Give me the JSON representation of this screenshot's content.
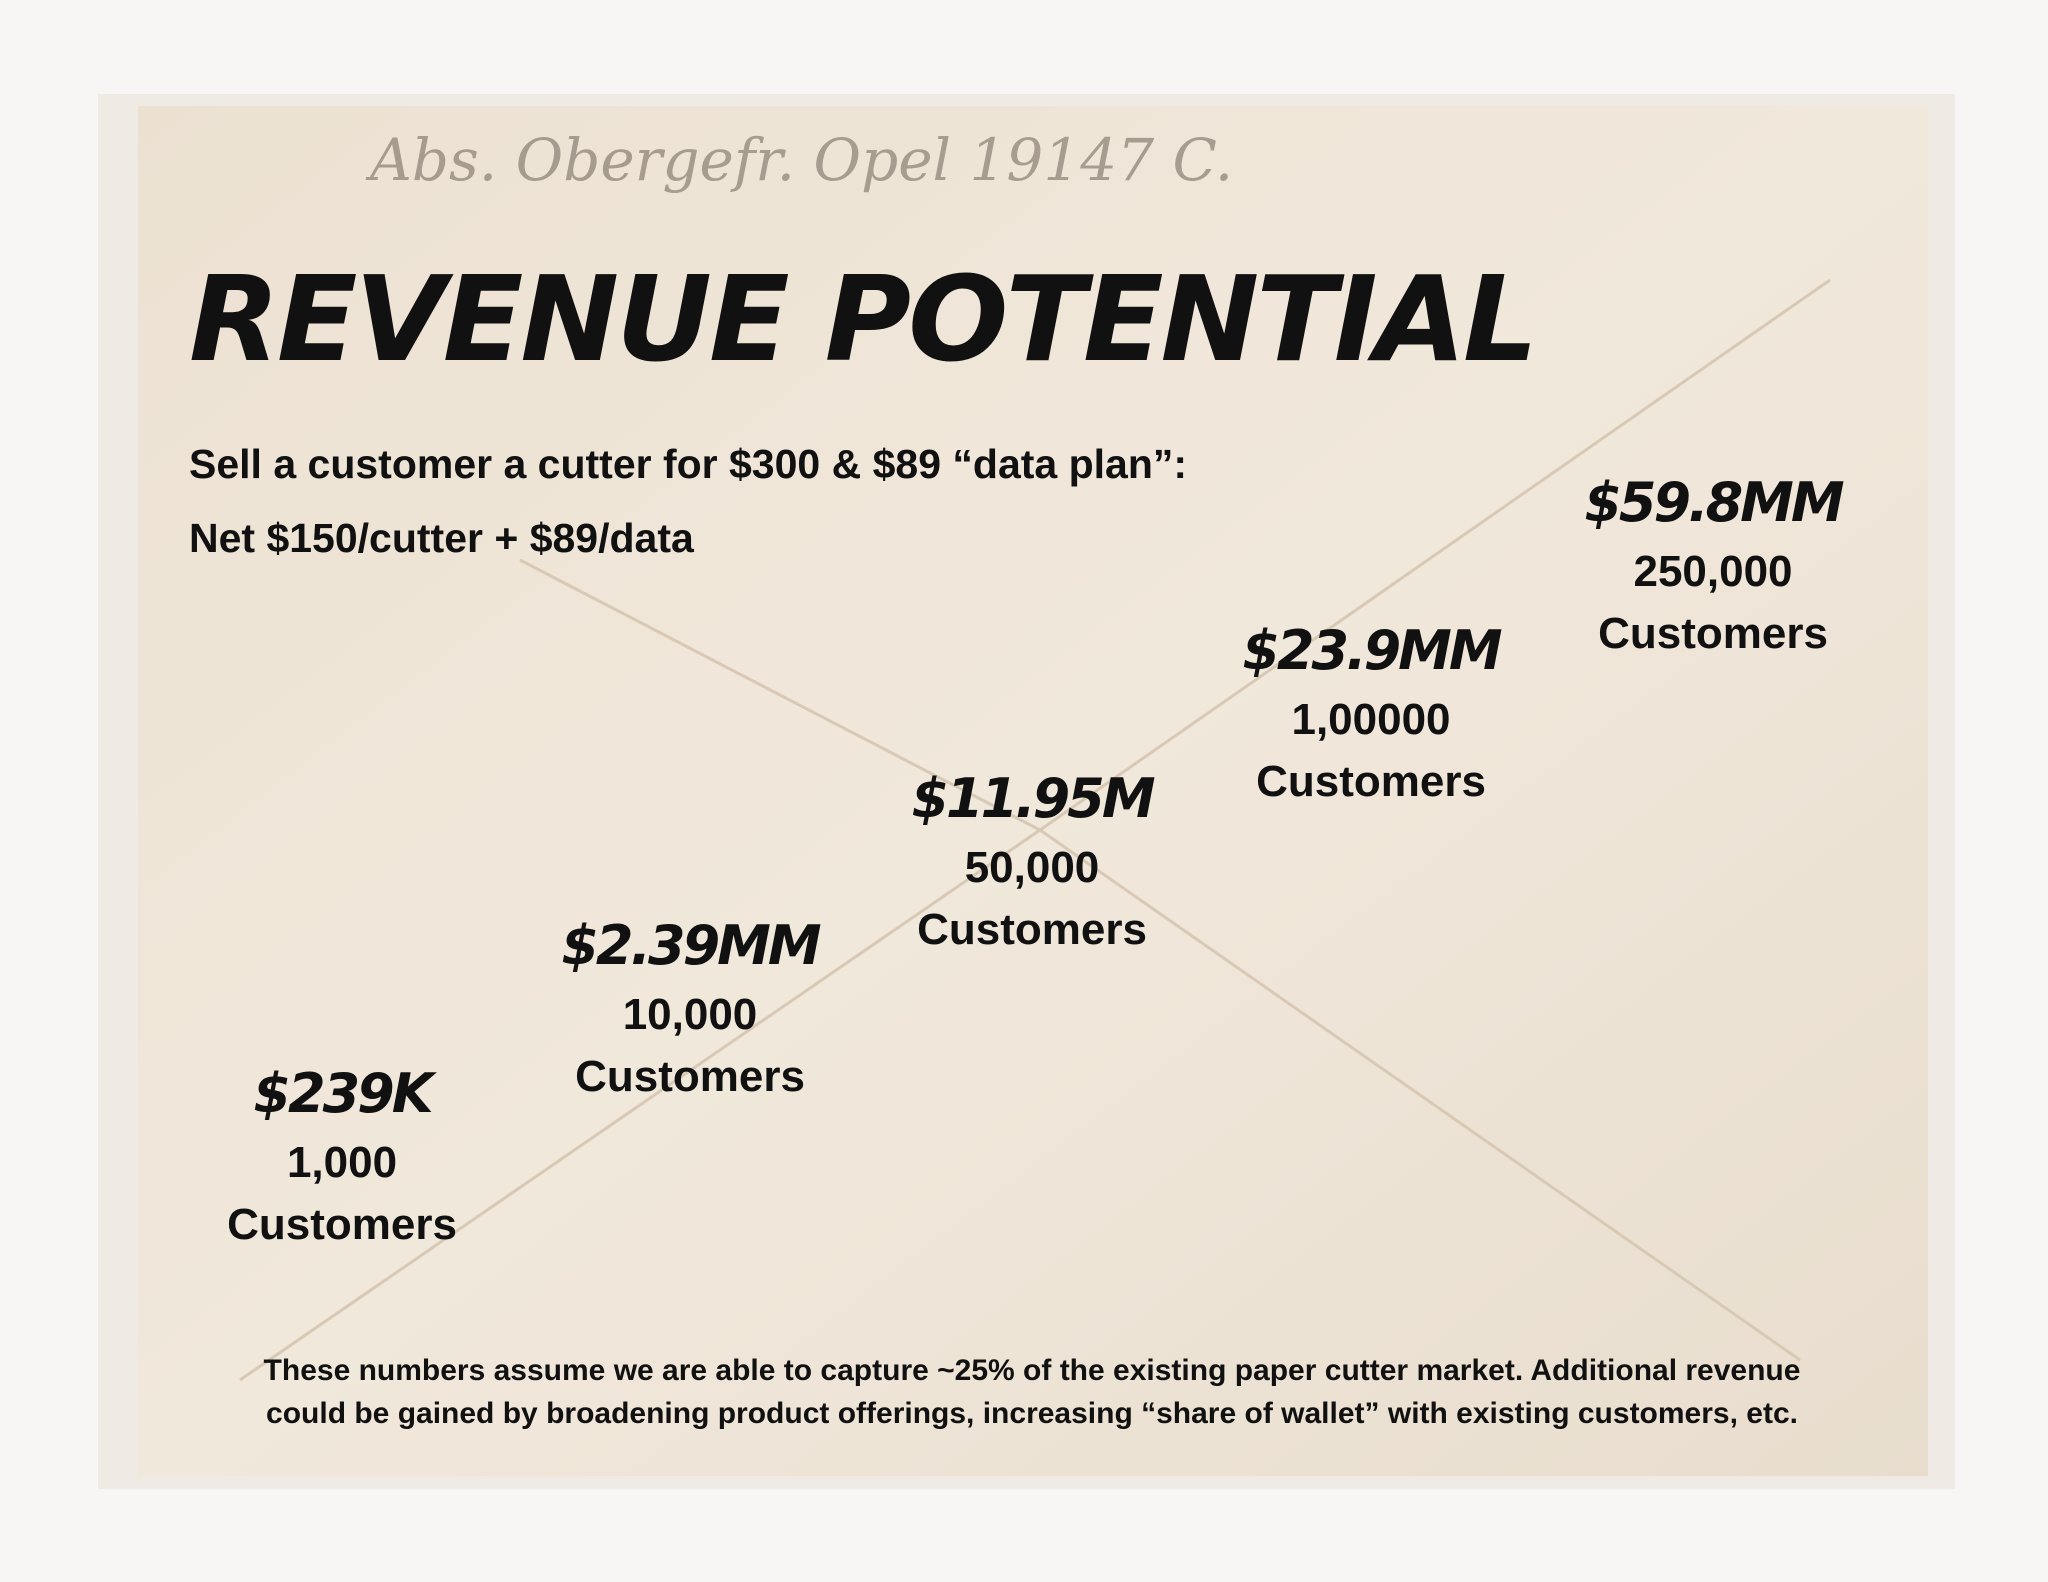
{
  "handwriting": "Abs. Obergefr. Opel 19147 C.",
  "title": "REVENUE POTENTIAL",
  "subtitle": [
    "Sell a customer a cutter for $300 & $89 “data plan”:",
    "Net $150/cutter + $89/data"
  ],
  "tiers": [
    {
      "revenue": "$239K",
      "customers": "1,000",
      "unit": "Customers"
    },
    {
      "revenue": "$2.39MM",
      "customers": "10,000",
      "unit": "Customers"
    },
    {
      "revenue": "$11.95M",
      "customers": "50,000",
      "unit": "Customers"
    },
    {
      "revenue": "$23.9MM",
      "customers": "1,00000",
      "unit": "Customers"
    },
    {
      "revenue": "$59.8MM",
      "customers": "250,000",
      "unit": "Customers"
    }
  ],
  "footnote": [
    "These numbers assume we are able to capture ~25% of the existing paper cutter market. Additional revenue",
    "could be gained by broadening product offerings, increasing “share of wallet” with existing customers, etc."
  ]
}
